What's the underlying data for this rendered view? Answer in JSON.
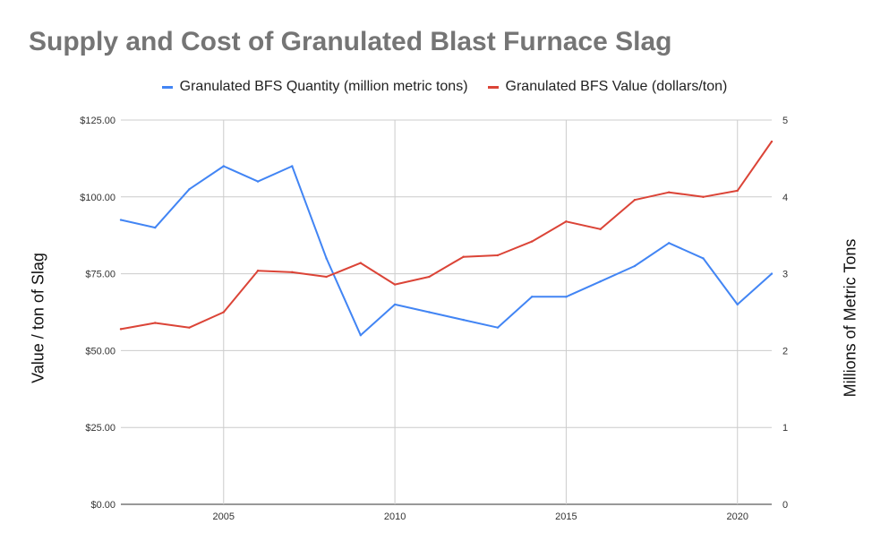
{
  "chart_data": {
    "type": "line",
    "title": "Supply and Cost of Granulated Blast Furnace Slag",
    "x": [
      2002,
      2003,
      2004,
      2005,
      2006,
      2007,
      2008,
      2009,
      2010,
      2011,
      2012,
      2013,
      2014,
      2015,
      2016,
      2017,
      2018,
      2019,
      2020,
      2021
    ],
    "xlim": [
      2002,
      2021
    ],
    "x_ticks": [
      "2005",
      "2010",
      "2015",
      "2020"
    ],
    "x_tick_values": [
      2005,
      2010,
      2015,
      2020
    ],
    "ylabel_left": "Value / ton of Slag",
    "ylabel_right": "Millions of Metric Tons",
    "ylim_left": [
      0,
      125
    ],
    "ylim_right": [
      0,
      5
    ],
    "y_ticks_left": [
      "$0.00",
      "$25.00",
      "$50.00",
      "$75.00",
      "$100.00",
      "$125.00"
    ],
    "y_ticks_right": [
      "0",
      "1",
      "2",
      "3",
      "4",
      "5"
    ],
    "grid": true,
    "legend_position": "top",
    "series": [
      {
        "name": "Granulated BFS Quantity (million metric tons)",
        "axis": "right",
        "color": "#4285f4",
        "values": [
          3.7,
          3.6,
          4.1,
          4.4,
          4.2,
          4.4,
          3.2,
          2.2,
          2.6,
          2.5,
          2.4,
          2.3,
          2.7,
          2.7,
          2.9,
          3.1,
          3.4,
          3.2,
          2.6,
          3.0
        ]
      },
      {
        "name": "Granulated BFS Value (dollars/ton)",
        "axis": "left",
        "color": "#db4437",
        "values": [
          57,
          59,
          57.5,
          62.5,
          76,
          75.5,
          74,
          78.5,
          71.5,
          74,
          80.5,
          81,
          85.5,
          92,
          89.5,
          99,
          101.5,
          100,
          102,
          118
        ]
      }
    ]
  }
}
